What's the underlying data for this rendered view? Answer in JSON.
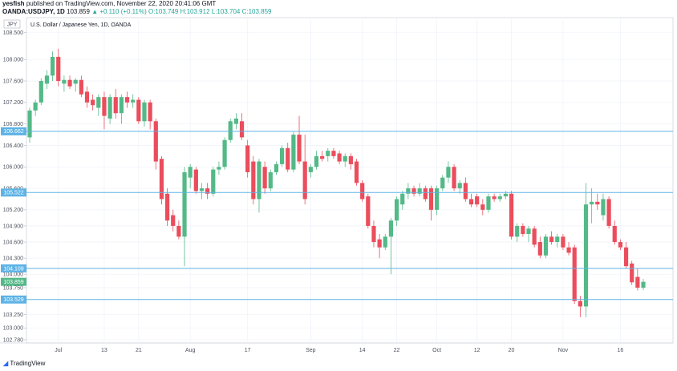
{
  "header": {
    "author": "yesfish",
    "published": "published on TradingView.com, November 22, 2020 20:41:06 GMT",
    "symbol": "OANDA:USDJPY, 1D",
    "price": "103.859",
    "change": "▲ +0.110 (+0.11%)",
    "ohlc": [
      "O:103.749",
      "H:103.912",
      "L:103.704",
      "C:103.859"
    ]
  },
  "footer": {
    "brand": "TradingView"
  },
  "chart_data": {
    "type": "candlestick",
    "title": "U.S. Dollar / Japanese Yen, 1D, OANDA",
    "currency": "JPY",
    "up_color": "#53b987",
    "down_color": "#eb4d5c",
    "grid": true,
    "ylim": [
      102.72,
      108.78
    ],
    "yticks": [
      {
        "value": 108.5,
        "label": "108.500"
      },
      {
        "value": 108,
        "label": "108.000"
      },
      {
        "value": 107.6,
        "label": "107.600"
      },
      {
        "value": 107.2,
        "label": "107.200"
      },
      {
        "value": 106.8,
        "label": "106.800"
      },
      {
        "value": 106.4,
        "label": "106.400"
      },
      {
        "value": 106,
        "label": "106.000"
      },
      {
        "value": 105.6,
        "label": "105.600"
      },
      {
        "value": 105.2,
        "label": "105.200"
      },
      {
        "value": 104.9,
        "label": "104.900"
      },
      {
        "value": 104.6,
        "label": "104.600"
      },
      {
        "value": 104.3,
        "label": "104.300"
      },
      {
        "value": 104,
        "label": "104.000"
      },
      {
        "value": 103.75,
        "label": "103.750"
      },
      {
        "value": 103.25,
        "label": "103.250"
      },
      {
        "value": 103,
        "label": "103.000"
      },
      {
        "value": 102.78,
        "label": "102.780"
      }
    ],
    "levels": [
      {
        "value": 106.662,
        "label": "106.662"
      },
      {
        "value": 105.522,
        "label": "105.522"
      },
      {
        "value": 104.109,
        "label": "104.109"
      },
      {
        "value": 103.529,
        "label": "103.529"
      }
    ],
    "level_color": "#5db3e6",
    "last_price": {
      "value": 103.859,
      "label": "103.859"
    },
    "categories": [
      null,
      null,
      null,
      null,
      null,
      "Jul",
      null,
      null,
      null,
      null,
      null,
      null,
      null,
      "13",
      null,
      null,
      null,
      null,
      null,
      "21",
      null,
      null,
      null,
      null,
      null,
      null,
      null,
      null,
      "Aug",
      null,
      null,
      null,
      null,
      null,
      null,
      null,
      null,
      null,
      "17",
      null,
      null,
      null,
      null,
      null,
      null,
      null,
      null,
      null,
      null,
      "Sep",
      null,
      null,
      null,
      null,
      null,
      null,
      null,
      null,
      "14",
      null,
      null,
      null,
      null,
      null,
      "22",
      null,
      null,
      null,
      null,
      null,
      null,
      "Oct",
      null,
      null,
      null,
      null,
      null,
      null,
      "12",
      null,
      null,
      null,
      null,
      null,
      "20",
      null,
      null,
      null,
      null,
      null,
      null,
      null,
      null,
      "Nov",
      null,
      null,
      null,
      null,
      null,
      null,
      null,
      null,
      null,
      "16",
      null,
      null,
      null,
      null
    ],
    "candles": [
      [
        106.55,
        107.1,
        106.45,
        107.05
      ],
      [
        107.05,
        107.25,
        106.95,
        107.2
      ],
      [
        107.2,
        107.65,
        107.15,
        107.6
      ],
      [
        107.55,
        107.8,
        107.45,
        107.7
      ],
      [
        107.7,
        108.15,
        107.6,
        108.05
      ],
      [
        108.05,
        108.2,
        107.5,
        107.6
      ],
      [
        107.55,
        107.7,
        107.4,
        107.62
      ],
      [
        107.62,
        107.7,
        107.45,
        107.5
      ],
      [
        107.55,
        107.65,
        107.4,
        107.62
      ],
      [
        107.62,
        107.7,
        107.3,
        107.35
      ],
      [
        107.4,
        107.5,
        107.1,
        107.2
      ],
      [
        107.25,
        107.35,
        107.05,
        107.15
      ],
      [
        107.1,
        107.35,
        106.95,
        107.3
      ],
      [
        107.3,
        107.4,
        106.7,
        106.95
      ],
      [
        106.9,
        107.35,
        106.8,
        107.3
      ],
      [
        107.3,
        107.45,
        106.9,
        107.0
      ],
      [
        107.0,
        107.35,
        106.8,
        107.3
      ],
      [
        107.3,
        107.4,
        107.1,
        107.2
      ],
      [
        107.2,
        107.35,
        107.1,
        107.25
      ],
      [
        107.25,
        107.3,
        106.8,
        106.85
      ],
      [
        106.85,
        107.25,
        106.75,
        107.2
      ],
      [
        107.2,
        107.25,
        106.7,
        106.85
      ],
      [
        106.85,
        106.9,
        105.95,
        106.1
      ],
      [
        106.15,
        106.2,
        105.3,
        105.4
      ],
      [
        105.5,
        105.6,
        104.9,
        105.0
      ],
      [
        105.1,
        105.2,
        104.8,
        104.9
      ],
      [
        104.9,
        105.0,
        104.65,
        104.7
      ],
      [
        104.7,
        106.0,
        104.15,
        105.9
      ],
      [
        105.8,
        106.05,
        105.6,
        106.0
      ],
      [
        105.95,
        106.0,
        105.5,
        105.55
      ],
      [
        105.55,
        105.7,
        105.4,
        105.6
      ],
      [
        105.6,
        105.7,
        105.4,
        105.5
      ],
      [
        105.5,
        106.0,
        105.45,
        105.95
      ],
      [
        105.95,
        106.1,
        105.85,
        106.0
      ],
      [
        106.0,
        106.55,
        105.95,
        106.5
      ],
      [
        106.5,
        106.9,
        106.45,
        106.85
      ],
      [
        106.8,
        107.0,
        106.7,
        106.9
      ],
      [
        106.85,
        107.0,
        106.5,
        106.55
      ],
      [
        106.4,
        106.5,
        105.8,
        105.9
      ],
      [
        106.1,
        106.2,
        105.3,
        105.4
      ],
      [
        105.4,
        106.15,
        105.15,
        106.1
      ],
      [
        106.0,
        106.1,
        105.5,
        105.6
      ],
      [
        105.6,
        105.95,
        105.55,
        105.9
      ],
      [
        105.9,
        106.1,
        105.85,
        106.05
      ],
      [
        106.05,
        106.4,
        106.0,
        106.35
      ],
      [
        106.35,
        106.45,
        105.9,
        105.95
      ],
      [
        105.95,
        106.65,
        105.9,
        106.6
      ],
      [
        106.6,
        106.95,
        106.05,
        106.1
      ],
      [
        106.1,
        106.6,
        105.3,
        105.4
      ],
      [
        105.9,
        106.05,
        105.8,
        106.0
      ],
      [
        106.0,
        106.3,
        105.95,
        106.2
      ],
      [
        106.2,
        106.3,
        106.1,
        106.15
      ],
      [
        106.2,
        106.35,
        106.1,
        106.3
      ],
      [
        106.3,
        106.35,
        106.15,
        106.2
      ],
      [
        106.25,
        106.3,
        106.05,
        106.1
      ],
      [
        106.1,
        106.25,
        106.0,
        106.2
      ],
      [
        106.2,
        106.25,
        105.95,
        106.05
      ],
      [
        106.1,
        106.15,
        105.65,
        105.7
      ],
      [
        105.7,
        105.75,
        105.35,
        105.4
      ],
      [
        105.45,
        105.5,
        104.85,
        104.9
      ],
      [
        104.9,
        105.0,
        104.5,
        104.6
      ],
      [
        104.65,
        104.75,
        104.3,
        104.5
      ],
      [
        104.5,
        104.75,
        104.45,
        104.7
      ],
      [
        104.7,
        105.05,
        104.0,
        105.0
      ],
      [
        105.0,
        105.45,
        104.9,
        105.4
      ],
      [
        105.3,
        105.55,
        105.2,
        105.5
      ],
      [
        105.5,
        105.7,
        105.4,
        105.6
      ],
      [
        105.6,
        105.65,
        105.45,
        105.5
      ],
      [
        105.5,
        105.7,
        105.45,
        105.6
      ],
      [
        105.6,
        105.65,
        105.35,
        105.4
      ],
      [
        105.6,
        105.65,
        105.0,
        105.2
      ],
      [
        105.2,
        105.65,
        105.1,
        105.6
      ],
      [
        105.6,
        105.85,
        105.55,
        105.8
      ],
      [
        105.8,
        106.1,
        105.7,
        106.0
      ],
      [
        106.0,
        106.05,
        105.55,
        105.6
      ],
      [
        105.6,
        105.75,
        105.5,
        105.7
      ],
      [
        105.7,
        105.8,
        105.35,
        105.4
      ],
      [
        105.4,
        105.5,
        105.25,
        105.3
      ],
      [
        105.45,
        105.5,
        105.25,
        105.3
      ],
      [
        105.3,
        105.4,
        105.1,
        105.2
      ],
      [
        105.2,
        105.5,
        105.15,
        105.45
      ],
      [
        105.45,
        105.5,
        105.35,
        105.4
      ],
      [
        105.4,
        105.5,
        105.35,
        105.45
      ],
      [
        105.45,
        105.55,
        105.4,
        105.5
      ],
      [
        105.5,
        105.55,
        104.65,
        104.7
      ],
      [
        104.7,
        104.95,
        104.6,
        104.9
      ],
      [
        104.9,
        104.95,
        104.7,
        104.75
      ],
      [
        104.75,
        104.9,
        104.6,
        104.85
      ],
      [
        104.85,
        104.9,
        104.5,
        104.55
      ],
      [
        104.6,
        104.7,
        104.3,
        104.35
      ],
      [
        104.35,
        104.75,
        104.3,
        104.7
      ],
      [
        104.7,
        104.8,
        104.55,
        104.6
      ],
      [
        104.6,
        104.75,
        104.5,
        104.7
      ],
      [
        104.7,
        104.75,
        104.45,
        104.5
      ],
      [
        104.5,
        104.6,
        104.35,
        104.4
      ],
      [
        104.5,
        104.55,
        103.45,
        103.5
      ],
      [
        103.5,
        103.6,
        103.2,
        103.4
      ],
      [
        103.4,
        105.7,
        103.2,
        105.3
      ],
      [
        105.3,
        105.6,
        104.95,
        105.35
      ],
      [
        105.35,
        105.5,
        105.2,
        105.3
      ],
      [
        105.1,
        105.5,
        105.0,
        105.4
      ],
      [
        105.4,
        105.45,
        104.85,
        104.9
      ],
      [
        104.9,
        105.0,
        104.55,
        104.6
      ],
      [
        104.6,
        104.65,
        104.45,
        104.5
      ],
      [
        104.5,
        104.6,
        104.1,
        104.15
      ],
      [
        104.2,
        104.25,
        103.8,
        103.85
      ],
      [
        103.95,
        104.1,
        103.7,
        103.75
      ],
      [
        103.749,
        103.912,
        103.704,
        103.859
      ]
    ]
  }
}
